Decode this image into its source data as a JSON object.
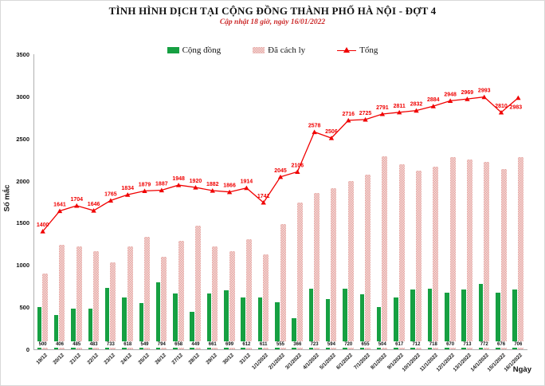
{
  "title": "TÌNH HÌNH DỊCH TẠI CỘNG ĐỒNG THÀNH PHỐ HÀ NỘI - ĐỢT 4",
  "subtitle": "Cập nhật 18 giờ, ngày 16/01/2022",
  "legend": [
    {
      "label": "Cộng đồng",
      "swatch": "green-square"
    },
    {
      "label": "Đã cách ly",
      "swatch": "pink-pattern-square"
    },
    {
      "label": "Tổng",
      "swatch": "red-line-marker"
    }
  ],
  "axes": {
    "y_label": "Số mắc",
    "x_label": "Ngày",
    "y_ticks": [
      0,
      500,
      1000,
      1500,
      2000,
      2500,
      3000,
      3500
    ]
  },
  "colors": {
    "community_green": "#16a042",
    "quarantine_pink": "#e7a6a3",
    "total_red": "#f00000",
    "subtitle_red": "#cc2b2b"
  },
  "chart_data": {
    "type": "bar",
    "note": "combo clustered-bar + line chart",
    "title": "TÌNH HÌNH DỊCH TẠI CỘNG ĐỒNG THÀNH PHỐ HÀ NỘI - ĐỢT 4",
    "xlabel": "Ngày",
    "ylabel": "Số mắc",
    "ylim": [
      0,
      3500
    ],
    "grid": false,
    "legend_position": "top-center",
    "categories": [
      "19/12",
      "20/12",
      "21/12",
      "22/12",
      "23/12",
      "24/12",
      "25/12",
      "26/12",
      "27/12",
      "28/12",
      "29/12",
      "30/12",
      "31/12",
      "1/1/2022",
      "2/1/2022",
      "3/1/2022",
      "4/1/2022",
      "5/1/2022",
      "6/1/2022",
      "7/1/2022",
      "8/1/2022",
      "9/1/2022",
      "10/1/2022",
      "11/1/2022",
      "12/1/2022",
      "13/1/2022",
      "14/1/2022",
      "15/1/2022",
      "16/1/2022"
    ],
    "series": [
      {
        "name": "Cộng đồng",
        "type": "bar",
        "color": "#16a042",
        "labeled": true,
        "values": [
          500,
          406,
          485,
          483,
          733,
          618,
          549,
          794,
          658,
          449,
          661,
          699,
          612,
          611,
          555,
          366,
          723,
          594,
          720,
          655,
          504,
          617,
          712,
          718,
          670,
          713,
          772,
          676,
          706
        ]
      },
      {
        "name": "Đã cách ly",
        "type": "bar",
        "color": "#e7a6a3",
        "pattern": "dotted",
        "labeled": false,
        "values": [
          900,
          1235,
          1219,
          1163,
          1032,
          1216,
          1330,
          1093,
          1290,
          1471,
          1221,
          1167,
          1302,
          1130,
          1490,
          1740,
          1855,
          1912,
          1996,
          2070,
          2287,
          2194,
          2120,
          2166,
          2278,
          2256,
          2221,
          2134,
          2277
        ]
      },
      {
        "name": "Tổng",
        "type": "line",
        "color": "#f00000",
        "marker": "triangle",
        "labeled": true,
        "values": [
          1400,
          1641,
          1704,
          1646,
          1765,
          1834,
          1879,
          1887,
          1948,
          1920,
          1882,
          1866,
          1914,
          1741,
          2045,
          2106,
          2578,
          2506,
          2716,
          2725,
          2791,
          2811,
          2832,
          2884,
          2948,
          2969,
          2993,
          2810,
          2983
        ]
      }
    ]
  }
}
